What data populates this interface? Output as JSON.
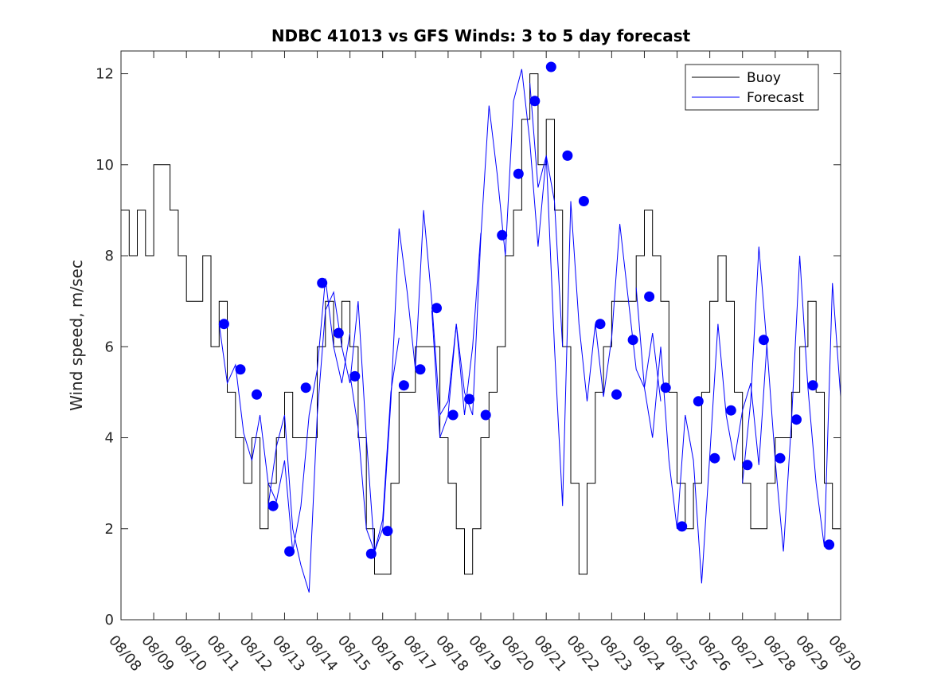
{
  "chart_data": {
    "type": "line",
    "title": "NDBC 41013 vs GFS Winds: 3 to 5 day forecast",
    "xlabel": "",
    "ylabel": "Wind speed, m/sec",
    "xlim": [
      0,
      22
    ],
    "ylim": [
      0,
      12.5
    ],
    "grid": false,
    "legend_position": "top-right",
    "x_tick_values": [
      0,
      1,
      2,
      3,
      4,
      5,
      6,
      7,
      8,
      9,
      10,
      11,
      12,
      13,
      14,
      15,
      16,
      17,
      18,
      19,
      20,
      21,
      22
    ],
    "x_tick_labels": [
      "08/08",
      "08/09",
      "08/10",
      "08/11",
      "08/12",
      "08/13",
      "08/14",
      "08/15",
      "08/16",
      "08/17",
      "08/18",
      "08/19",
      "08/20",
      "08/21",
      "08/22",
      "08/23",
      "08/24",
      "08/25",
      "08/26",
      "08/27",
      "08/28",
      "08/29",
      "08/30"
    ],
    "y_tick_values": [
      0,
      2,
      4,
      6,
      8,
      10,
      12
    ],
    "y_tick_labels": [
      "0",
      "2",
      "4",
      "6",
      "8",
      "10",
      "12"
    ],
    "legend": [
      {
        "label": "Buoy",
        "color": "#000000"
      },
      {
        "label": "Forecast",
        "color": "#0000ff"
      }
    ],
    "series": [
      {
        "name": "Buoy",
        "color": "#000000",
        "style": "step",
        "x": [
          0.0,
          0.25,
          0.5,
          0.75,
          1.0,
          1.2,
          1.5,
          1.75,
          2.0,
          2.25,
          2.5,
          2.75,
          3.0,
          3.25,
          3.5,
          3.75,
          4.0,
          4.25,
          4.5,
          4.75,
          5.0,
          5.25,
          5.5,
          5.75,
          6.0,
          6.25,
          6.5,
          6.75,
          7.0,
          7.25,
          7.5,
          7.75,
          8.0,
          8.25,
          8.5,
          8.75,
          9.0,
          9.25,
          9.5,
          9.75,
          10.0,
          10.25,
          10.5,
          10.75,
          11.0,
          11.25,
          11.5,
          11.75,
          12.0,
          12.25,
          12.5,
          12.75,
          13.0,
          13.25,
          13.5,
          13.75,
          14.0,
          14.25,
          14.5,
          14.75,
          15.0,
          15.25,
          15.5,
          15.75,
          16.0,
          16.25,
          16.5,
          16.75,
          17.0,
          17.25,
          17.5,
          17.75,
          18.0,
          18.25,
          18.5,
          18.75,
          19.0,
          19.25,
          19.5,
          19.75,
          20.0,
          20.25,
          20.5,
          20.75,
          21.0,
          21.25,
          21.5,
          21.75,
          22.0
        ],
        "y": [
          9,
          8,
          9,
          8,
          10,
          10,
          9,
          8,
          7,
          7,
          8,
          6,
          7,
          5,
          4,
          3,
          4,
          2,
          3,
          4,
          5,
          4,
          4,
          4,
          6,
          7,
          6,
          7,
          6,
          4,
          2,
          1,
          1,
          3,
          5,
          5,
          6,
          6,
          6,
          4,
          3,
          2,
          1,
          2,
          4,
          5,
          6,
          8,
          9,
          11,
          12,
          10,
          11,
          9,
          6,
          3,
          1,
          3,
          5,
          6,
          7,
          7,
          7,
          8,
          9,
          8,
          7,
          5,
          3,
          2,
          3,
          5,
          7,
          8,
          7,
          5,
          3,
          2,
          2,
          3,
          4,
          4,
          5,
          6,
          7,
          5,
          3,
          2,
          3
        ]
      },
      {
        "name": "Forecast",
        "color": "#0000ff",
        "style": "line",
        "runs": [
          {
            "x": [
              3.0,
              3.25,
              3.5,
              3.75,
              4.0,
              4.25,
              4.5,
              4.75,
              5.0,
              5.25,
              5.5,
              5.75,
              6.0,
              6.25,
              6.5,
              6.75,
              7.0
            ],
            "y": [
              6.5,
              5.2,
              5.6,
              4.1,
              3.5,
              4.5,
              3.0,
              2.6,
              3.5,
              1.5,
              2.5,
              4.5,
              5.5,
              7.5,
              6.0,
              5.2,
              6.3
            ]
          },
          {
            "x": [
              4.5,
              4.75,
              5.0,
              5.25,
              5.5,
              5.75,
              6.0,
              6.25,
              6.5,
              6.75,
              7.0,
              7.25,
              7.5,
              7.75,
              8.0,
              8.25,
              8.5
            ],
            "y": [
              2.5,
              3.8,
              4.5,
              2.0,
              1.2,
              0.6,
              4.5,
              6.8,
              7.2,
              6.0,
              5.2,
              7.0,
              4.0,
              1.5,
              2.2,
              5.0,
              6.2
            ]
          },
          {
            "x": [
              7.0,
              7.25,
              7.5,
              7.75,
              8.0,
              8.25,
              8.5,
              8.75,
              9.0,
              9.25,
              9.5,
              9.75,
              10.0,
              10.25,
              10.5,
              10.75,
              11.0
            ],
            "y": [
              5.4,
              4.2,
              2.0,
              1.5,
              2.0,
              4.8,
              8.6,
              7.2,
              5.5,
              9.0,
              7.0,
              4.5,
              4.8,
              6.5,
              4.5,
              6.0,
              8.5
            ]
          },
          {
            "x": [
              9.5,
              9.75,
              10.0,
              10.25,
              10.5,
              10.75,
              11.0,
              11.25,
              11.5,
              11.75,
              12.0,
              12.25,
              12.5,
              12.75,
              13.0,
              13.25,
              13.5
            ],
            "y": [
              6.8,
              4.0,
              4.5,
              6.5,
              5.0,
              4.5,
              8.4,
              11.3,
              9.8,
              8.0,
              11.4,
              12.1,
              10.5,
              8.2,
              10.2,
              9.2,
              6.0
            ]
          },
          {
            "x": [
              12.5,
              12.75,
              13.0,
              13.25,
              13.5,
              13.75,
              14.0,
              14.25,
              14.5,
              14.75,
              15.0,
              15.25,
              15.5,
              15.75,
              16.0,
              16.25,
              16.5
            ],
            "y": [
              11.8,
              9.5,
              10.2,
              6.0,
              2.5,
              9.2,
              6.5,
              4.8,
              6.5,
              4.9,
              6.2,
              8.7,
              7.1,
              5.5,
              5.1,
              6.3,
              4.8
            ]
          },
          {
            "x": [
              15.75,
              16.0,
              16.25,
              16.5,
              16.75,
              17.0,
              17.25,
              17.5,
              17.75,
              18.0,
              18.25,
              18.5,
              18.75,
              19.0,
              19.25,
              19.5,
              19.75
            ],
            "y": [
              7.3,
              5.1,
              4.0,
              6.0,
              3.5,
              2.0,
              4.5,
              3.5,
              0.8,
              3.6,
              6.5,
              4.5,
              3.5,
              4.6,
              5.2,
              3.4,
              6.1
            ]
          },
          {
            "x": [
              19.0,
              19.25,
              19.5,
              19.75,
              20.0,
              20.25,
              20.5,
              20.75,
              21.0,
              21.25,
              21.5,
              21.75,
              22.0
            ],
            "y": [
              3.0,
              4.8,
              8.2,
              6.0,
              3.5,
              1.5,
              4.4,
              8.0,
              5.1,
              3.0,
              1.6,
              7.4,
              4.9
            ]
          }
        ]
      },
      {
        "name": "Forecast markers",
        "color": "#0000ff",
        "style": "marker",
        "x": [
          3.15,
          3.65,
          4.15,
          4.65,
          5.15,
          5.65,
          6.15,
          6.65,
          7.15,
          7.65,
          8.15,
          8.65,
          9.15,
          9.65,
          10.15,
          10.65,
          11.15,
          11.65,
          12.15,
          12.65,
          13.15,
          13.65,
          14.15,
          14.65,
          15.15,
          15.65,
          16.15,
          16.65,
          17.15,
          17.65,
          18.15,
          18.65,
          19.15,
          19.65,
          20.15,
          20.65,
          21.15,
          21.65
        ],
        "y": [
          6.5,
          5.5,
          4.95,
          2.5,
          1.5,
          5.1,
          7.4,
          6.3,
          5.35,
          1.45,
          1.95,
          5.15,
          5.5,
          6.85,
          4.5,
          4.85,
          4.5,
          8.45,
          9.8,
          11.4,
          12.15,
          10.2,
          9.2,
          6.5,
          4.95,
          6.15,
          7.1,
          5.1,
          2.05,
          4.8,
          3.55,
          4.6,
          3.4,
          6.15,
          3.55,
          4.4,
          5.15,
          1.65
        ]
      }
    ]
  }
}
